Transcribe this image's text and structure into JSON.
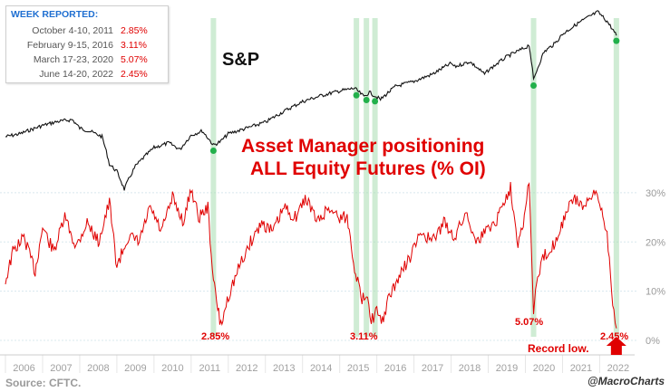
{
  "legend": {
    "title": "WEEK REPORTED:",
    "rows": [
      {
        "label": "October 4-10, 2011",
        "value": "2.85%"
      },
      {
        "label": "February 9-15, 2016",
        "value": "3.11%"
      },
      {
        "label": "March 17-23, 2020",
        "value": "5.07%"
      },
      {
        "label": "June 14-20, 2022",
        "value": "2.45%"
      }
    ]
  },
  "sp_label": "S&P",
  "title_line1": "Asset Manager positioning",
  "title_line2": "ALL Equity Futures (% OI)",
  "annotations": {
    "a2011": "2.85%",
    "a2016": "3.11%",
    "a2020": "5.07%",
    "a2022": "2.45%",
    "record": "Record low."
  },
  "source": "Source: CFTC.",
  "credit": "@MacroCharts",
  "colors": {
    "sp_line": "#111111",
    "positioning_line": "#e00000",
    "highlight": "#a8dcb0",
    "marker": "#22b04b",
    "legend_title": "#1f6fd1"
  },
  "chart_data": {
    "type": "line",
    "x_ticks": [
      "2006",
      "2007",
      "2008",
      "2009",
      "2010",
      "2011",
      "2012",
      "2013",
      "2014",
      "2015",
      "2016",
      "2017",
      "2018",
      "2019",
      "2020",
      "2021",
      "2022"
    ],
    "y_right_ticks": [
      "0%",
      "10%",
      "20%",
      "30%"
    ],
    "y_right_range": [
      0,
      32
    ],
    "series": [
      {
        "role": "S&P",
        "note": "index level, log scale, approximate weekly values",
        "x": [
          2006.0,
          2006.4,
          2006.8,
          2007.0,
          2007.4,
          2007.8,
          2008.0,
          2008.3,
          2008.6,
          2008.8,
          2009.0,
          2009.2,
          2009.5,
          2010.0,
          2010.4,
          2010.7,
          2011.0,
          2011.3,
          2011.6,
          2011.8,
          2012.0,
          2012.5,
          2013.0,
          2013.5,
          2014.0,
          2014.5,
          2015.0,
          2015.4,
          2015.65,
          2015.8,
          2016.1,
          2016.5,
          2017.0,
          2017.5,
          2018.0,
          2018.1,
          2018.5,
          2018.9,
          2019.0,
          2019.5,
          2020.0,
          2020.1,
          2020.22,
          2020.5,
          2020.8,
          2021.0,
          2021.5,
          2021.95,
          2022.2,
          2022.45
        ],
        "y": [
          1260,
          1300,
          1380,
          1420,
          1480,
          1510,
          1380,
          1330,
          1260,
          940,
          870,
          720,
          920,
          1120,
          1180,
          1100,
          1280,
          1340,
          1150,
          1200,
          1300,
          1380,
          1470,
          1650,
          1830,
          1950,
          2050,
          2110,
          1930,
          2020,
          1870,
          2150,
          2270,
          2450,
          2750,
          2650,
          2800,
          2450,
          2550,
          2950,
          3250,
          3350,
          2300,
          3100,
          3400,
          3750,
          4300,
          4750,
          4300,
          3700
        ]
      },
      {
        "role": "Asset Manager positioning ALL Equity Futures (% OI)",
        "x": [
          2006.0,
          2006.2,
          2006.5,
          2006.8,
          2007.0,
          2007.3,
          2007.6,
          2007.9,
          2008.2,
          2008.5,
          2008.8,
          2009.0,
          2009.3,
          2009.6,
          2009.9,
          2010.2,
          2010.5,
          2010.8,
          2011.0,
          2011.2,
          2011.45,
          2011.6,
          2011.8,
          2012.0,
          2012.3,
          2012.6,
          2012.9,
          2013.2,
          2013.5,
          2013.8,
          2014.1,
          2014.4,
          2014.7,
          2015.0,
          2015.2,
          2015.4,
          2015.6,
          2015.75,
          2015.85,
          2016.0,
          2016.12,
          2016.3,
          2016.6,
          2016.9,
          2017.2,
          2017.5,
          2017.8,
          2018.1,
          2018.4,
          2018.7,
          2019.0,
          2019.2,
          2019.4,
          2019.6,
          2019.8,
          2020.0,
          2020.1,
          2020.22,
          2020.3,
          2020.5,
          2020.8,
          2021.0,
          2021.3,
          2021.6,
          2021.9,
          2022.0,
          2022.2,
          2022.35,
          2022.45
        ],
        "y": [
          12,
          18,
          21,
          14,
          23,
          18,
          25,
          19,
          24,
          20,
          28,
          15,
          21,
          20,
          27,
          22,
          29,
          24,
          31,
          25,
          27,
          12,
          2.85,
          9,
          15,
          20,
          24,
          22,
          27,
          25,
          29,
          24,
          27,
          25,
          25,
          15,
          8,
          10,
          4,
          6,
          3.11,
          8,
          13,
          17,
          22,
          20,
          24,
          21,
          26,
          20,
          23,
          24,
          28,
          31,
          20,
          26,
          33,
          5.07,
          12,
          17,
          20,
          24,
          29,
          27,
          30,
          28,
          22,
          8,
          2.45
        ]
      }
    ],
    "highlights": [
      2011.6,
      2015.45,
      2015.72,
      2015.95,
      2020.22,
      2022.45
    ]
  }
}
